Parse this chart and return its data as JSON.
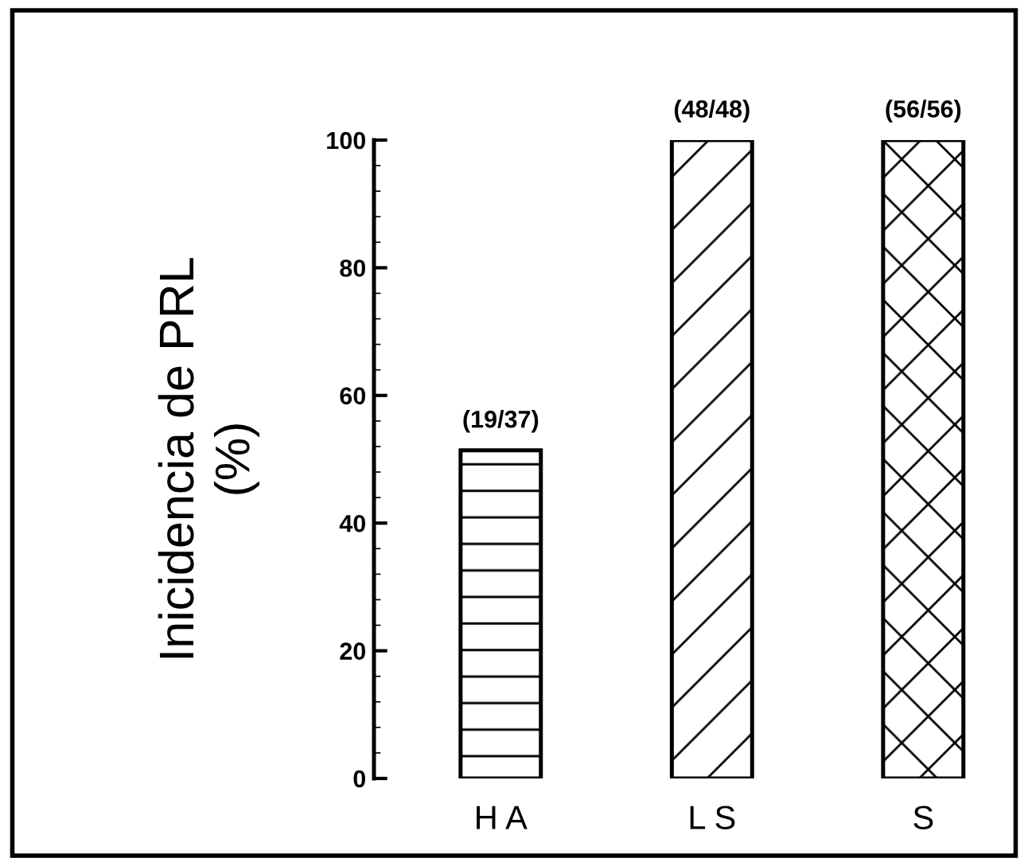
{
  "chart_data": {
    "type": "bar",
    "ylabel": "Inicidencia de PRL\n(%)",
    "categories": [
      "H A",
      "L S",
      "S"
    ],
    "values": [
      51.4,
      100,
      100
    ],
    "value_labels": [
      "(19/37)",
      "(48/48)",
      "(56/56)"
    ],
    "colors": [
      "#000000",
      "#000000",
      "#000000"
    ],
    "ylim": [
      0,
      100
    ],
    "yticks": [
      0,
      20,
      40,
      60,
      80,
      100
    ],
    "grid": false,
    "legend": false
  }
}
